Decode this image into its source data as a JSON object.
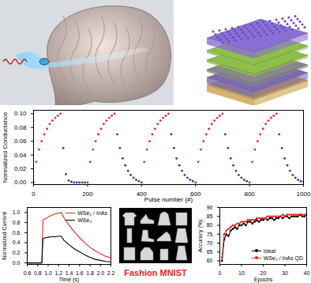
{
  "chart_data": [
    {
      "type": "scatter",
      "x_label": "Pulse number (#)",
      "y_label": "Normalized Conductance",
      "x": [
        0,
        10,
        20,
        30,
        40,
        50,
        60,
        70,
        80,
        90,
        100,
        110,
        120,
        130,
        140,
        150,
        160,
        170,
        180,
        190,
        200,
        210,
        220,
        230,
        240,
        250,
        260,
        270,
        280,
        290,
        300,
        310,
        320,
        330,
        340,
        350,
        360,
        370,
        380,
        390,
        400,
        410,
        420,
        430,
        440,
        450,
        460,
        470,
        480,
        490,
        500,
        510,
        520,
        530,
        540,
        550,
        560,
        570,
        580,
        590,
        600,
        610,
        620,
        630,
        640,
        650,
        660,
        670,
        680,
        690,
        700,
        710,
        720,
        730,
        740,
        750,
        760,
        770,
        780,
        790,
        800,
        810,
        820,
        830,
        840,
        850,
        860,
        870,
        880,
        890,
        900,
        910,
        920,
        930,
        940,
        950,
        960,
        970,
        980,
        990,
        1000
      ],
      "series": [
        {
          "color": "#e8251f",
          "marker": "circle",
          "values": [
            0,
            0.03,
            0.048,
            0.06,
            0.07,
            0.078,
            0.085,
            0.09,
            0.094,
            0.097,
            0.1,
            null,
            null,
            null,
            null,
            null,
            null,
            null,
            null,
            null,
            0,
            0.03,
            0.048,
            0.06,
            0.07,
            0.078,
            0.085,
            0.09,
            0.094,
            0.097,
            0.1,
            null,
            null,
            null,
            null,
            null,
            null,
            null,
            null,
            null,
            0,
            0.03,
            0.048,
            0.06,
            0.07,
            0.078,
            0.085,
            0.09,
            0.094,
            0.097,
            0.1,
            null,
            null,
            null,
            null,
            null,
            null,
            null,
            null,
            null,
            0,
            0.03,
            0.048,
            0.06,
            0.07,
            0.078,
            0.085,
            0.09,
            0.094,
            0.097,
            0.1,
            null,
            null,
            null,
            null,
            null,
            null,
            null,
            null,
            null,
            0,
            0.03,
            0.048,
            0.06,
            0.07,
            0.078,
            0.085,
            0.09,
            0.094,
            0.097,
            0.1,
            null,
            null,
            null,
            null,
            null,
            null,
            null,
            null,
            null,
            null
          ]
        },
        {
          "color": "#1f3c9c",
          "marker": "circle",
          "values": [
            null,
            null,
            null,
            null,
            null,
            null,
            null,
            null,
            null,
            null,
            null,
            0.05,
            0.012,
            0.003,
            0.001,
            0,
            0,
            0,
            0,
            0,
            null,
            null,
            null,
            null,
            null,
            null,
            null,
            null,
            null,
            null,
            null,
            0.07,
            0.05,
            0.035,
            0.025,
            0.017,
            0.011,
            0.007,
            0.004,
            0.002,
            null,
            null,
            null,
            null,
            null,
            null,
            null,
            null,
            null,
            null,
            null,
            0.07,
            0.05,
            0.035,
            0.025,
            0.017,
            0.011,
            0.007,
            0.004,
            0.002,
            null,
            null,
            null,
            null,
            null,
            null,
            null,
            null,
            null,
            null,
            null,
            0.07,
            0.05,
            0.035,
            0.025,
            0.017,
            0.011,
            0.007,
            0.004,
            0.002,
            null,
            null,
            null,
            null,
            null,
            null,
            null,
            null,
            null,
            null,
            null,
            0.07,
            0.05,
            0.035,
            0.025,
            0.017,
            0.011,
            0.007,
            0.004,
            0.002,
            0.001
          ]
        }
      ],
      "xlim": [
        0,
        1000
      ],
      "xticks": [
        0,
        200,
        400,
        600,
        800,
        1000
      ],
      "ylim": [
        -0.003,
        0.105
      ],
      "yticks": [
        {
          "value": 0,
          "label": "0.00"
        },
        {
          "value": 0.02,
          "label": "0.02"
        },
        {
          "value": 0.04,
          "label": "0.04"
        },
        {
          "value": 0.06,
          "label": "0.06"
        },
        {
          "value": 0.08,
          "label": "0.08"
        },
        {
          "value": 0.1,
          "label": "0.10"
        }
      ],
      "grid": false
    },
    {
      "type": "line",
      "x_label": "Time (s)",
      "y_label": "Normalized Current",
      "x": [
        0.6,
        0.7,
        0.8,
        0.88,
        0.9,
        0.95,
        1.0,
        1.05,
        1.1,
        1.15,
        1.2,
        1.25,
        1.3,
        1.4,
        1.5,
        1.6,
        1.7,
        1.8,
        1.9,
        2.0,
        2.1,
        2.2
      ],
      "series": [
        {
          "name": "WSe₂ / InAs",
          "color": "#e8251f",
          "line_style": "solid",
          "values": [
            0,
            0,
            0,
            0,
            0.85,
            0.88,
            0.91,
            0.94,
            0.96,
            0.98,
            0.99,
            1.0,
            0.9,
            0.75,
            0.62,
            0.5,
            0.4,
            0.31,
            0.24,
            0.18,
            0.13,
            0.1
          ]
        },
        {
          "name": "WSe₂",
          "color": "#000000",
          "line_style": "solid",
          "values": [
            0,
            0,
            0,
            0,
            0.48,
            0.5,
            0.51,
            0.52,
            0.52,
            0.52,
            0.53,
            0.53,
            0.45,
            0.36,
            0.28,
            0.22,
            0.16,
            0.11,
            0.07,
            0.05,
            0.03,
            0.02
          ]
        }
      ],
      "xlim": [
        0.6,
        2.2
      ],
      "xticks": [
        0.6,
        0.8,
        {
          "value": 1,
          "label": "1.0"
        },
        1.2,
        1.4,
        1.6,
        1.8,
        {
          "value": 2,
          "label": "2.0"
        },
        2.2
      ],
      "ylim": [
        -0.03,
        1.1
      ],
      "yticks": [
        {
          "value": 0,
          "label": "0.0"
        },
        0.2,
        0.4,
        0.6,
        0.8,
        {
          "value": 1,
          "label": "1.0"
        }
      ],
      "legend": "upper right",
      "grid": false
    },
    {
      "type": "line",
      "x_label": "Epochs",
      "y_label": "Accuracy (%)",
      "x": [
        1,
        2,
        3,
        4,
        5,
        6,
        7,
        8,
        9,
        10,
        11,
        12,
        13,
        14,
        15,
        16,
        17,
        18,
        19,
        20,
        21,
        22,
        23,
        24,
        25,
        26,
        27,
        28,
        29,
        30,
        31,
        32,
        33,
        34,
        35,
        36,
        37,
        38,
        39,
        40
      ],
      "series": [
        {
          "name": "Ideal",
          "color": "#000000",
          "marker": "circle",
          "line_style": "solid",
          "values": [
            60,
            72,
            75,
            74,
            77,
            78,
            79,
            78,
            80,
            80,
            81,
            80,
            82,
            82,
            81,
            82,
            83,
            82,
            83,
            83,
            84,
            83,
            84,
            84,
            83,
            84,
            84,
            85,
            84,
            85,
            85,
            84,
            85,
            85,
            85,
            85,
            86,
            85,
            85,
            86
          ]
        },
        {
          "name": "WSe₂ / InAs QD",
          "color": "#e8251f",
          "marker": "circle",
          "line_style": "solid",
          "values": [
            62,
            75,
            77,
            78,
            79,
            80,
            80,
            81,
            81,
            82,
            82,
            82,
            83,
            83,
            83,
            83,
            84,
            84,
            84,
            84,
            84,
            85,
            85,
            85,
            85,
            85,
            85,
            85,
            86,
            85,
            86,
            86,
            86,
            86,
            86,
            86,
            86,
            86,
            86,
            86
          ]
        }
      ],
      "xlim": [
        0,
        40
      ],
      "xticks": [
        0,
        10,
        20,
        30,
        40
      ],
      "ylim": [
        58,
        90
      ],
      "yticks": [
        60,
        65,
        70,
        75,
        80,
        85,
        90
      ],
      "legend": "lower right",
      "grid": false
    }
  ],
  "panel_text": {
    "text": "Fashion MNIST",
    "color": "#e8251f"
  }
}
